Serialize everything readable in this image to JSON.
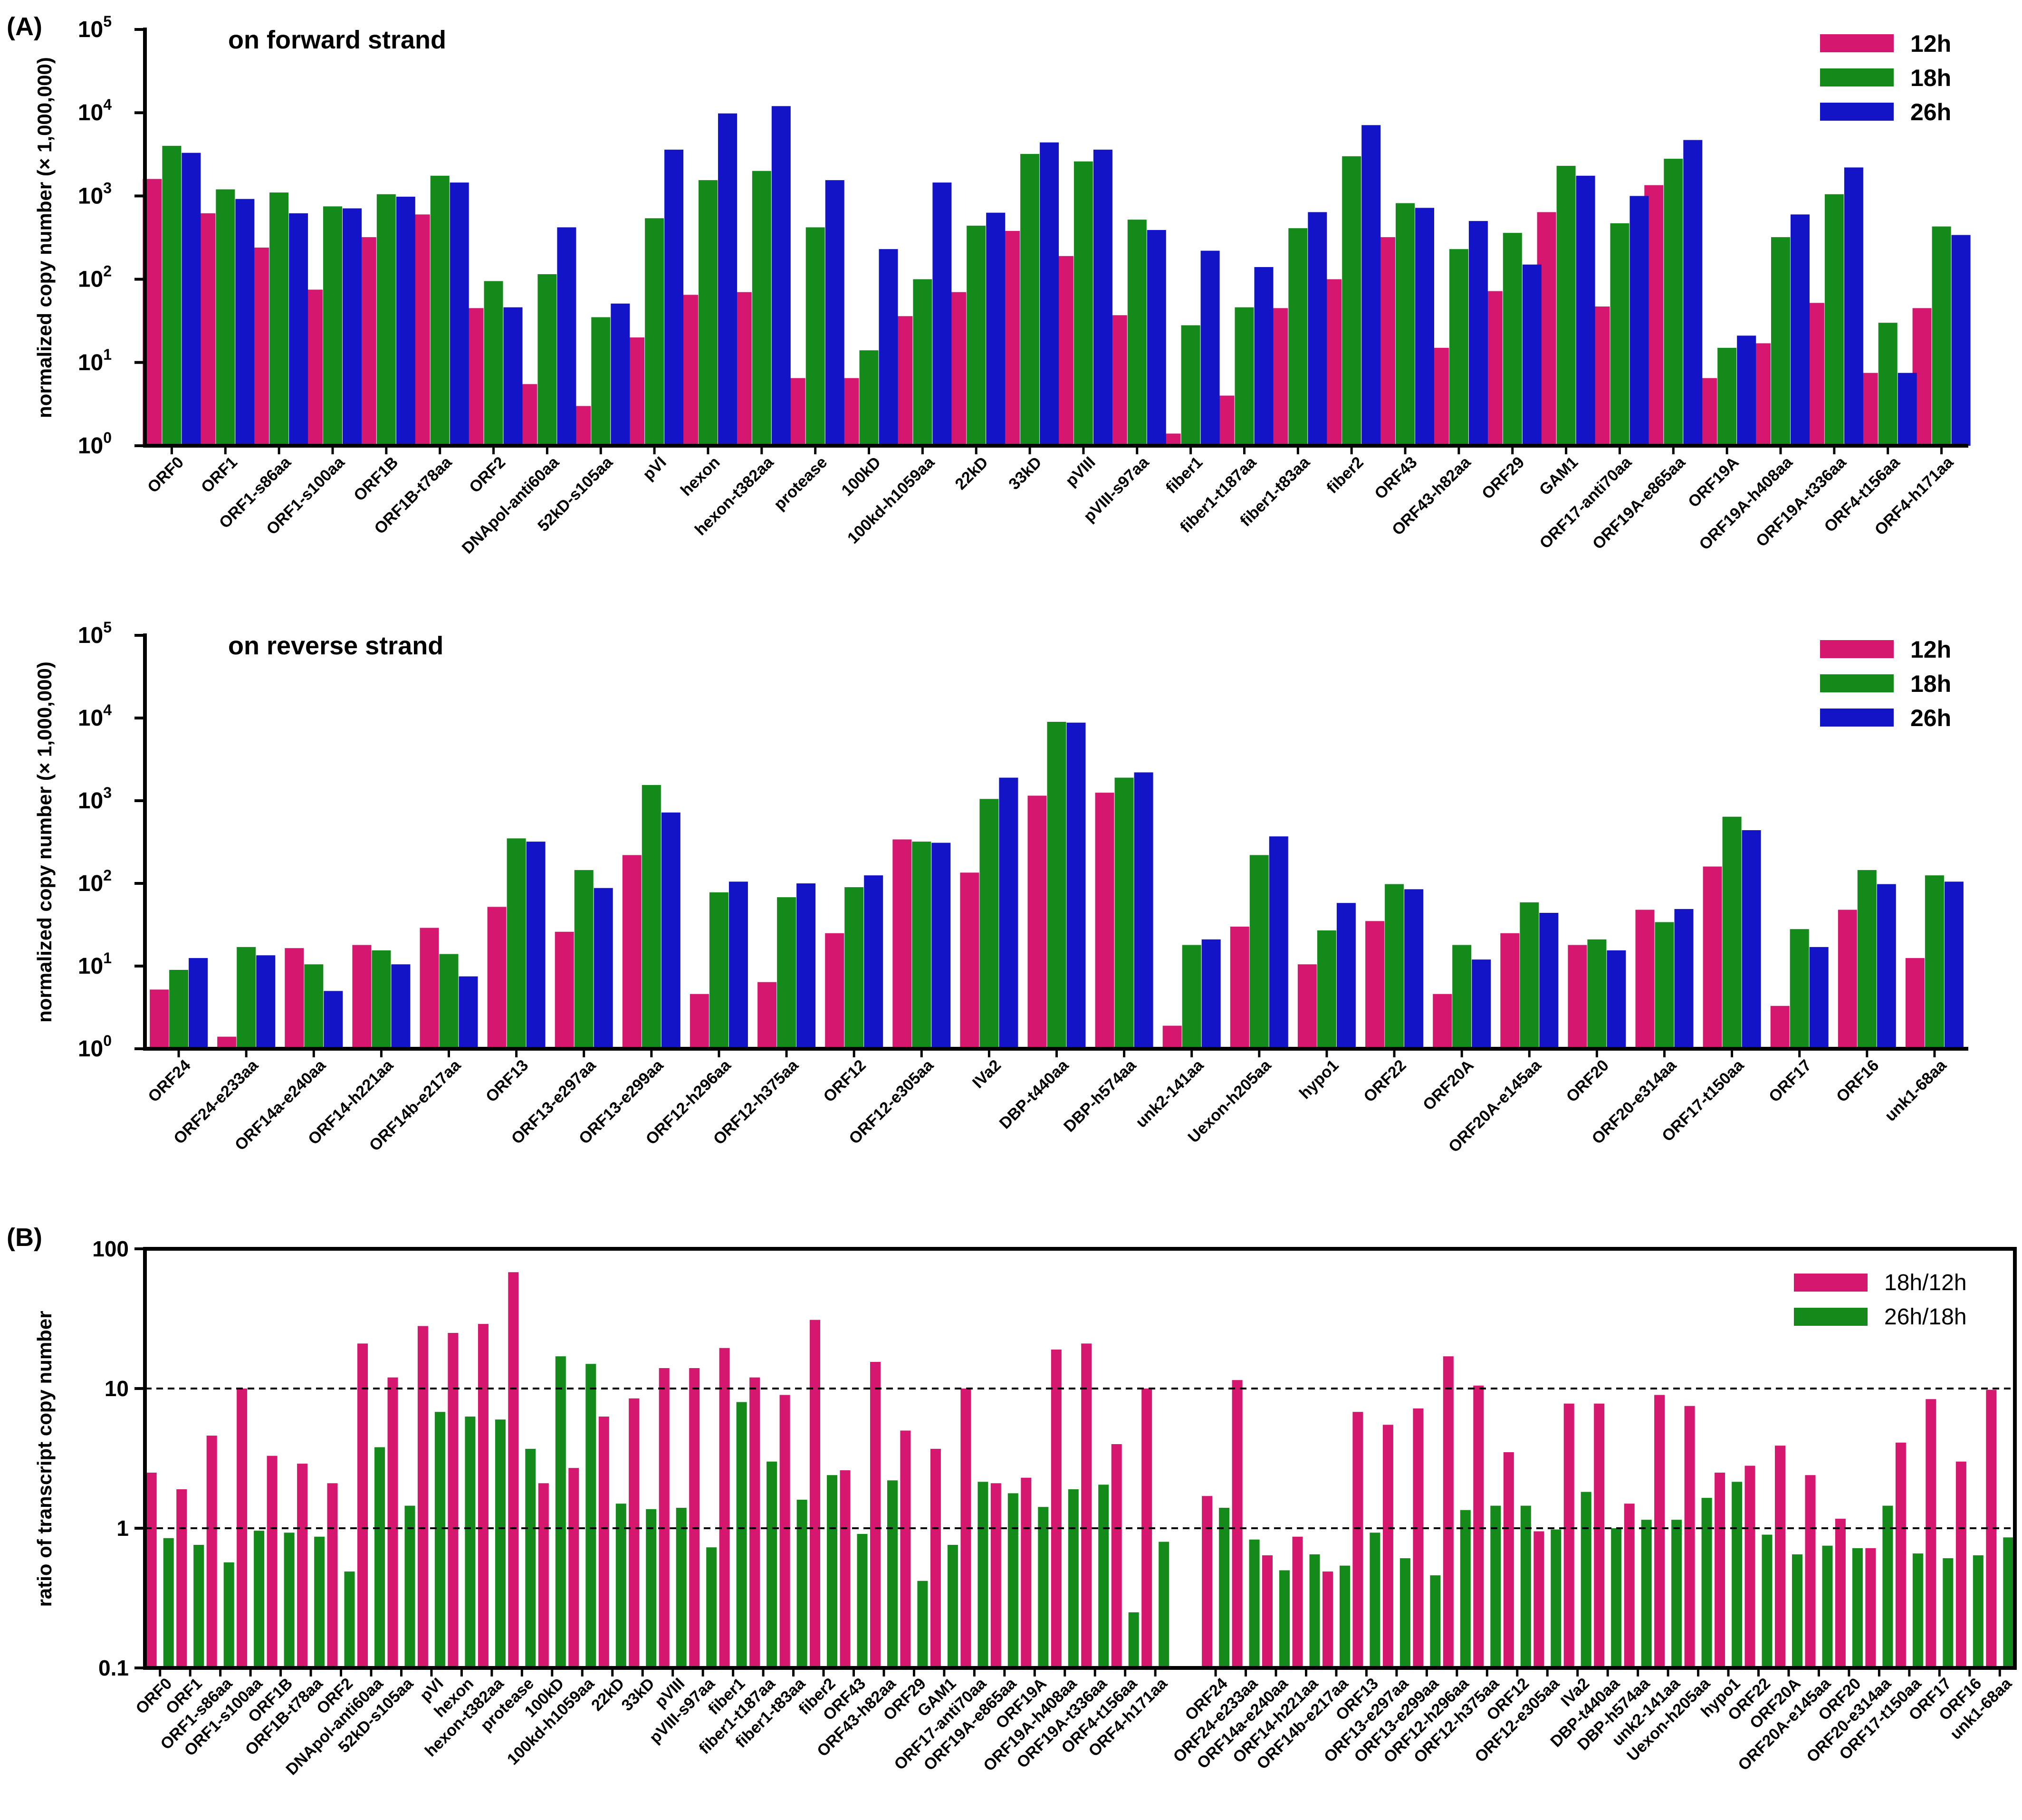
{
  "colors": {
    "h12": "#D6176F",
    "h18": "#138A1A",
    "h26": "#1313C8",
    "axis": "#000000"
  },
  "chart_data": [
    {
      "id": "A1",
      "type": "bar",
      "panel_label": "(A)",
      "title": "on forward strand",
      "ylabel": "normalized copy number (× 1,000,000)",
      "yscale": "log",
      "ylim": [
        1,
        100000
      ],
      "ytick_base": "10",
      "ytick_exponents": [
        "0",
        "1",
        "2",
        "3",
        "4",
        "5"
      ],
      "legend": [
        "12h",
        "18h",
        "26h"
      ],
      "categories": [
        "ORF0",
        "ORF1",
        "ORF1-s86aa",
        "ORF1-s100aa",
        "ORF1B",
        "ORF1B-t78aa",
        "ORF2",
        "DNApol-anti60aa",
        "52kD-s105aa",
        "pVI",
        "hexon",
        "hexon-t382aa",
        "protease",
        "100kD",
        "100kd-h1059aa",
        "22kD",
        "33kD",
        "pVIII",
        "pVIII-s97aa",
        "fiber1",
        "fiber1-t187aa",
        "fiber1-t83aa",
        "fiber2",
        "ORF43",
        "ORF43-h82aa",
        "ORF29",
        "GAM1",
        "ORF17-anti70aa",
        "ORF19A-e865aa",
        "ORF19A",
        "ORF19A-h408aa",
        "ORF19A-t336aa",
        "ORF4-t156aa",
        "ORF4-h171aa"
      ],
      "series": [
        {
          "name": "12h",
          "values": [
            1600,
            620,
            240,
            75,
            320,
            600,
            45,
            5.5,
            3,
            20,
            65,
            70,
            6.5,
            6.5,
            36,
            70,
            380,
            190,
            37,
            1.4,
            4,
            45,
            100,
            320,
            15,
            72,
            640,
            47,
            1350,
            6.5,
            17,
            52,
            7.5,
            45
          ]
        },
        {
          "name": "18h",
          "values": [
            4000,
            1200,
            1100,
            750,
            1050,
            1750,
            95,
            115,
            35,
            540,
            1550,
            2000,
            420,
            14,
            100,
            440,
            3200,
            2600,
            520,
            28,
            46,
            410,
            3000,
            820,
            230,
            360,
            2300,
            470,
            2800,
            15,
            320,
            1050,
            30,
            430
          ]
        },
        {
          "name": "26h",
          "values": [
            3300,
            920,
            620,
            710,
            980,
            1450,
            46,
            420,
            51,
            3600,
            9800,
            12000,
            1550,
            230,
            1450,
            630,
            4400,
            3600,
            390,
            220,
            140,
            640,
            7100,
            720,
            500,
            150,
            1750,
            1000,
            4700,
            21,
            600,
            2200,
            7.5,
            340
          ]
        }
      ]
    },
    {
      "id": "A2",
      "type": "bar",
      "title": "on reverse strand",
      "ylabel": "normalized copy number (× 1,000,000)",
      "yscale": "log",
      "ylim": [
        1,
        100000
      ],
      "ytick_base": "10",
      "ytick_exponents": [
        "0",
        "1",
        "2",
        "3",
        "4",
        "5"
      ],
      "legend": [
        "12h",
        "18h",
        "26h"
      ],
      "categories": [
        "ORF24",
        "ORF24-e233aa",
        "ORF14a-e240aa",
        "ORF14-h221aa",
        "ORF14b-e217aa",
        "ORF13",
        "ORF13-e297aa",
        "ORF13-e299aa",
        "ORF12-h296aa",
        "ORF12-h375aa",
        "ORF12",
        "ORF12-e305aa",
        "IVa2",
        "DBP-t440aa",
        "DBP-h574aa",
        "unk2-141aa",
        "Uexon-h205aa",
        "hypo1",
        "ORF22",
        "ORF20A",
        "ORF20A-e145aa",
        "ORF20",
        "ORF20-e314aa",
        "ORF17-t150aa",
        "ORF17",
        "ORF16",
        "unk1-68aa"
      ],
      "series": [
        {
          "name": "12h",
          "values": [
            5.2,
            1.4,
            16.5,
            18,
            29,
            52,
            26,
            220,
            4.6,
            6.4,
            25,
            340,
            135,
            1150,
            1250,
            1.9,
            30,
            10.5,
            35,
            4.6,
            25,
            18,
            48,
            160,
            3.3,
            48,
            12.5
          ]
        },
        {
          "name": "18h",
          "values": [
            9,
            17,
            10.5,
            15.5,
            14,
            350,
            145,
            1550,
            78,
            68,
            90,
            320,
            1050,
            9000,
            1900,
            18,
            220,
            27,
            98,
            18,
            59,
            21,
            34,
            640,
            28,
            145,
            125
          ]
        },
        {
          "name": "26h",
          "values": [
            12.5,
            13.5,
            5,
            10.5,
            7.5,
            320,
            88,
            720,
            105,
            100,
            125,
            310,
            1900,
            8800,
            2200,
            21,
            370,
            58,
            85,
            12,
            44,
            15.5,
            49,
            440,
            17,
            98,
            105
          ]
        }
      ]
    },
    {
      "id": "B",
      "type": "bar",
      "panel_label": "(B)",
      "ylabel": "ratio of transcript copy number",
      "yscale": "log",
      "ylim": [
        0.1,
        100
      ],
      "yticks": [
        "0.1",
        "1",
        "10",
        "100"
      ],
      "reference_lines": [
        1,
        10
      ],
      "legend": [
        "18h/12h",
        "26h/18h"
      ],
      "categories": [
        "ORF0",
        "ORF1",
        "ORF1-s86aa",
        "ORF1-s100aa",
        "ORF1B",
        "ORF1B-t78aa",
        "ORF2",
        "DNApol-anti60aa",
        "52kD-s105aa",
        "pVI",
        "hexon",
        "hexon-t382aa",
        "protease",
        "100kD",
        "100kd-h1059aa",
        "22kD",
        "33kD",
        "pVIII",
        "pVIII-s97aa",
        "fiber1",
        "fiber1-t187aa",
        "fiber1-t83aa",
        "fiber2",
        "ORF43",
        "ORF43-h82aa",
        "ORF29",
        "GAM1",
        "ORF17-anti70aa",
        "ORF19A-e865aa",
        "ORF19A",
        "ORF19A-h408aa",
        "ORF19A-t336aa",
        "ORF4-t156aa",
        "ORF4-h171aa",
        "",
        "ORF24",
        "ORF24-e233aa",
        "ORF14a-e240aa",
        "ORF14-h221aa",
        "ORF14b-e217aa",
        "ORF13",
        "ORF13-e297aa",
        "ORF13-e299aa",
        "ORF12-h296aa",
        "ORF12-h375aa",
        "ORF12",
        "ORF12-e305aa",
        "IVa2",
        "DBP-t440aa",
        "DBP-h574aa",
        "unk2-141aa",
        "Uexon-h205aa",
        "hypo1",
        "ORF22",
        "ORF20A",
        "ORF20A-e145aa",
        "ORF20",
        "ORF20-e314aa",
        "ORF17-t150aa",
        "ORF17",
        "ORF16",
        "unk1-68aa"
      ],
      "series": [
        {
          "name": "18h/12h",
          "values": [
            2.5,
            1.9,
            4.6,
            10,
            3.3,
            2.9,
            2.1,
            21,
            12,
            28,
            25,
            29,
            68,
            2.1,
            2.7,
            6.3,
            8.5,
            14,
            14,
            19.5,
            12,
            9,
            31,
            2.6,
            15.5,
            5,
            3.7,
            10,
            2.1,
            2.3,
            19,
            21,
            4,
            10,
            null,
            1.7,
            11.5,
            0.64,
            0.87,
            0.49,
            6.8,
            5.5,
            7.2,
            17,
            10.5,
            3.5,
            0.95,
            7.8,
            7.8,
            1.5,
            9,
            7.5,
            2.5,
            2.8,
            3.9,
            2.4,
            1.17,
            0.72,
            4.1,
            8.4,
            3,
            9.8
          ]
        },
        {
          "name": "26h/18h",
          "values": [
            0.85,
            0.76,
            0.57,
            0.96,
            0.93,
            0.87,
            0.49,
            3.8,
            1.45,
            6.8,
            6.3,
            6,
            3.7,
            17,
            15,
            1.5,
            1.37,
            1.4,
            0.73,
            8,
            3,
            1.6,
            2.4,
            0.91,
            2.2,
            0.42,
            0.76,
            2.15,
            1.78,
            1.42,
            1.9,
            2.05,
            0.25,
            0.8,
            null,
            1.4,
            0.83,
            0.5,
            0.65,
            0.54,
            0.93,
            0.61,
            0.46,
            1.35,
            1.45,
            1.45,
            0.98,
            1.82,
            1.0,
            1.15,
            1.15,
            1.65,
            2.15,
            0.9,
            0.65,
            0.75,
            0.72,
            1.45,
            0.66,
            0.61,
            0.64,
            0.86
          ]
        }
      ]
    }
  ]
}
